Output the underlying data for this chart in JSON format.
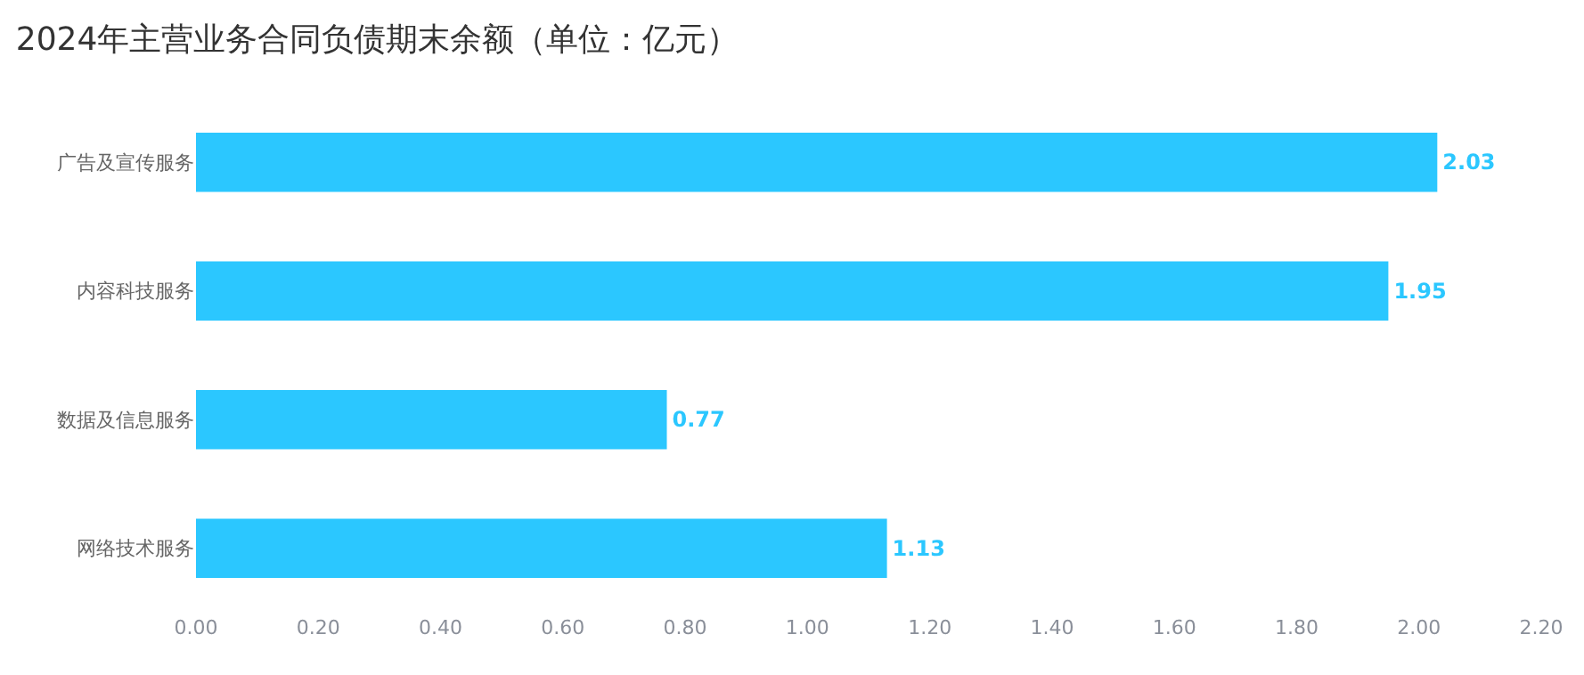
{
  "chart_data": {
    "type": "bar",
    "orientation": "horizontal",
    "title": "2024年主营业务合同负债期末余额（单位：亿元）",
    "categories": [
      "广告及宣传服务",
      "内容科技服务",
      "数据及信息服务",
      "网络技术服务"
    ],
    "values": [
      2.03,
      1.95,
      0.77,
      1.13
    ],
    "color": "#2bc7ff",
    "xlim": [
      0,
      2.2
    ],
    "xticks": [
      {
        "value": 0,
        "label": "0.00"
      },
      {
        "value": 0.2,
        "label": "0.20"
      },
      {
        "value": 0.4,
        "label": "0.40"
      },
      {
        "value": 0.6,
        "label": "0.60"
      },
      {
        "value": 0.8,
        "label": "0.80"
      },
      {
        "value": 1.0,
        "label": "1.00"
      },
      {
        "value": 1.2,
        "label": "1.20"
      },
      {
        "value": 1.4,
        "label": "1.40"
      },
      {
        "value": 1.6,
        "label": "1.60"
      },
      {
        "value": 1.8,
        "label": "1.80"
      },
      {
        "value": 2.0,
        "label": "2.00"
      },
      {
        "value": 2.2,
        "label": "2.20"
      }
    ],
    "data_labels": true
  }
}
